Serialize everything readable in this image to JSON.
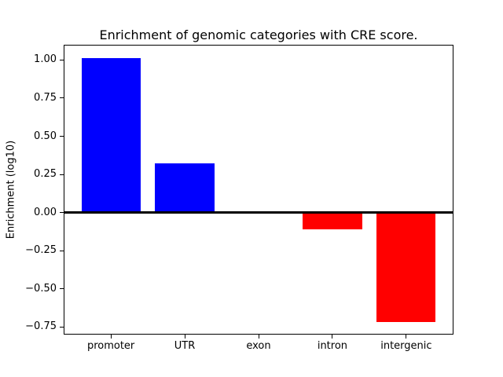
{
  "chart_data": {
    "type": "bar",
    "title": "Enrichment of genomic categories with CRE score.",
    "ylabel": "Enrichment (log10)",
    "xlabel": "",
    "categories": [
      "promoter",
      "UTR",
      "exon",
      "intron",
      "intergenic"
    ],
    "values": [
      1.01,
      0.32,
      0.0,
      -0.11,
      -0.72
    ],
    "yticks": [
      1.0,
      0.75,
      0.5,
      0.25,
      0.0,
      -0.25,
      -0.5,
      -0.75
    ],
    "ytick_labels": [
      "1.00",
      "0.75",
      "0.50",
      "0.25",
      "0.00",
      "−0.25",
      "−0.50",
      "−0.75"
    ],
    "ylim": [
      -0.8,
      1.1
    ],
    "xlim": [
      -0.64,
      4.64
    ],
    "bar_width": 0.8,
    "positive_color": "#0000ff",
    "negative_color": "#ff0000",
    "zero_line_color": "#000000",
    "axis_color": "#000000",
    "background_color": "#ffffff",
    "grid": false,
    "legend": null
  }
}
